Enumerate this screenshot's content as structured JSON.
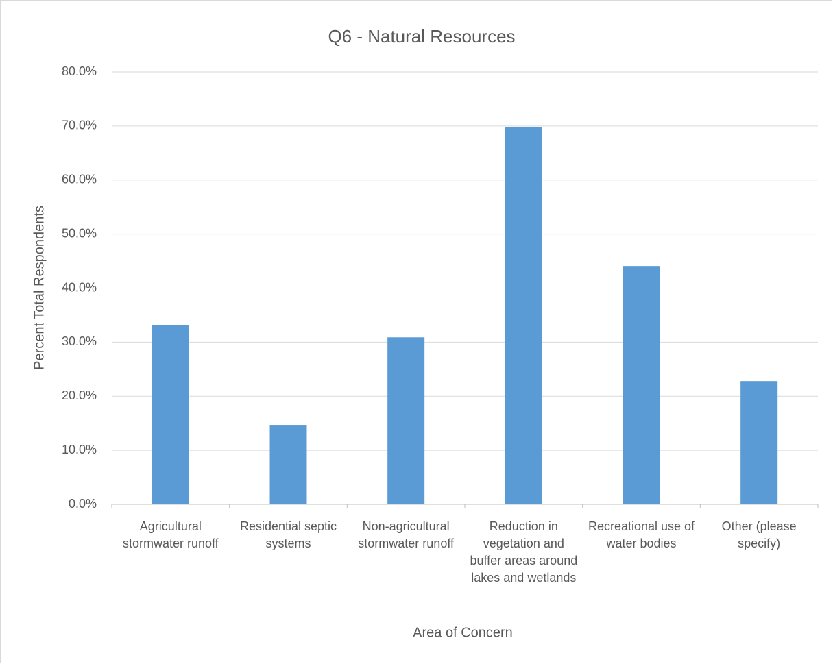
{
  "chart_data": {
    "type": "bar",
    "title": "Q6 - Natural Resources",
    "x_label": "Area of Concern",
    "y_label": "Percent Total Respondents",
    "categories": [
      "Agricultural stormwater runoff",
      "Residential septic systems",
      "Non-agricultural stormwater runoff",
      "Reduction in vegetation and buffer areas around lakes and wetlands",
      "Recreational use of water bodies",
      "Other (please specify)"
    ],
    "values": [
      33.1,
      14.7,
      30.9,
      69.8,
      44.1,
      22.8
    ],
    "color": "#5b9bd5",
    "ylim": [
      0,
      80
    ],
    "yticks": [
      {
        "value": 0,
        "label": "0.0%"
      },
      {
        "value": 10,
        "label": "10.0%"
      },
      {
        "value": 20,
        "label": "20.0%"
      },
      {
        "value": 30,
        "label": "30.0%"
      },
      {
        "value": 40,
        "label": "40.0%"
      },
      {
        "value": 50,
        "label": "50.0%"
      },
      {
        "value": 60,
        "label": "60.0%"
      },
      {
        "value": 70,
        "label": "70.0%"
      },
      {
        "value": 80,
        "label": "80.0%"
      }
    ],
    "grid": true
  }
}
